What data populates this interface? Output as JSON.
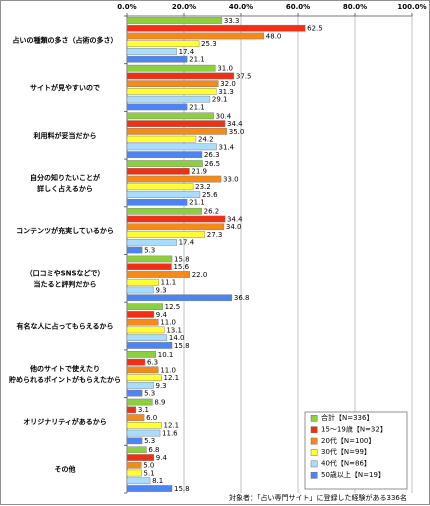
{
  "chart_data": {
    "type": "bar",
    "orientation": "horizontal",
    "title": "",
    "xlabel": "",
    "ylabel": "",
    "xlim": [
      0,
      100
    ],
    "x_tick_values": [
      0,
      20,
      40,
      60,
      80,
      100
    ],
    "x_tick_labels": [
      "0.0%",
      "20.0%",
      "40.0%",
      "60.0%",
      "80.0%",
      "100.0%"
    ],
    "grid": "vertical",
    "legend_position": "bottom-right",
    "categories": [
      "占いの種類の多さ（占術の多さ）",
      "サイトが見やすいので",
      "利用料が妥当だから",
      "自分の知りたいことが\n詳しく占えるから",
      "コンテンツが充実しているから",
      "（口コミやSNSなどで）\n当たると評判だから",
      "有名な人に占ってもらえるから",
      "他のサイトで使えたり\n貯められるポイントがもらえたから",
      "オリジナリティがあるから",
      "その他"
    ],
    "series": [
      {
        "name": "合計【N=336】",
        "color": "#8ccf3f",
        "values": [
          33.3,
          31.0,
          30.4,
          26.5,
          26.2,
          15.8,
          12.5,
          10.1,
          8.9,
          6.8
        ],
        "labels": [
          "33.3",
          "31.0",
          "30.4",
          "26.5",
          "26.2",
          "15.8",
          "12.5",
          "10.1",
          "8.9",
          "6.8"
        ]
      },
      {
        "name": "15～19歳【N=32】",
        "color": "#f02f13",
        "values": [
          62.5,
          37.5,
          34.4,
          21.9,
          34.4,
          15.6,
          9.4,
          6.3,
          3.1,
          9.4
        ],
        "labels": [
          "62.5",
          "37.5",
          "34.4",
          "21.9",
          "34.4",
          "15.6",
          "9.4",
          "6.3",
          "3.1",
          "9.4"
        ]
      },
      {
        "name": "20代【N=100】",
        "color": "#f58a18",
        "values": [
          48.0,
          32.0,
          35.0,
          33.0,
          34.0,
          22.0,
          11.0,
          11.0,
          6.0,
          5.0
        ],
        "labels": [
          "48.0",
          "32.0",
          "35.0",
          "33.0",
          "34.0",
          "22.0",
          "11.0",
          "11.0",
          "6.0",
          "5.0"
        ]
      },
      {
        "name": "30代【N=99】",
        "color": "#ffff33",
        "values": [
          25.3,
          31.3,
          24.2,
          23.2,
          27.3,
          11.1,
          13.1,
          12.1,
          12.1,
          5.1
        ],
        "labels": [
          "25.3",
          "31.3",
          "24.2",
          "23.2",
          "27.3",
          "11.1",
          "13.1",
          "12.1",
          "12.1",
          "5.1"
        ]
      },
      {
        "name": "40代【N=86】",
        "color": "#a9ddff",
        "values": [
          17.4,
          29.1,
          31.4,
          25.6,
          17.4,
          9.3,
          14.0,
          9.3,
          11.6,
          8.1
        ],
        "labels": [
          "17.4",
          "29.1",
          "31.4",
          "25.6",
          "17.4",
          "9.3",
          "14.0",
          "9.3",
          "11.6",
          "8.1"
        ]
      },
      {
        "name": "50歳以上【N=19】",
        "color": "#4c84f2",
        "values": [
          21.1,
          21.1,
          26.3,
          21.1,
          5.3,
          36.8,
          15.8,
          5.3,
          5.3,
          15.8
        ],
        "labels": [
          "21.1",
          "21.1",
          "26.3",
          "21.1",
          "5.3",
          "36.8",
          "15.8",
          "5.3",
          "5.3",
          "15.8"
        ]
      }
    ],
    "footer": "対象者：「占い専門サイト」に登録した経験がある336名"
  }
}
